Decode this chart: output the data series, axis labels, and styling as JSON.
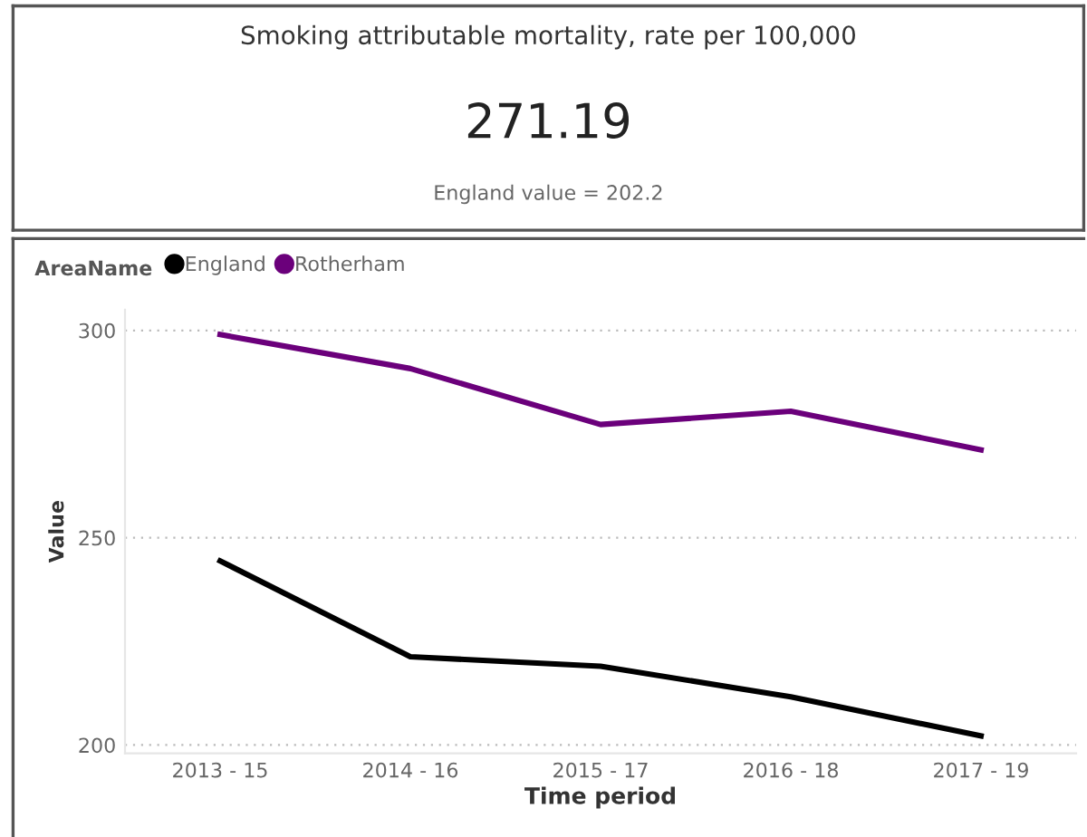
{
  "chart_data": [
    {
      "type": "other",
      "title": "Smoking attributable mortality, rate per 100,000",
      "annotations": [
        "271.19",
        "England value = 202.2"
      ]
    },
    {
      "type": "line",
      "legend_title": "AreaName",
      "legend": "top left",
      "grid": "y",
      "xlabel": "Time period",
      "ylabel": "Value",
      "categories": [
        "2013 - 15",
        "2014 - 16",
        "2015 - 17",
        "2016 - 18",
        "2017 - 19"
      ],
      "ylim": [
        198,
        305
      ],
      "yticks": [
        200,
        250,
        300
      ],
      "series": [
        {
          "name": "England",
          "color": "#000000",
          "values": [
            244.4,
            221.3,
            219.0,
            211.6,
            202.2
          ]
        },
        {
          "name": "Rotherham",
          "color": "#6b007b",
          "values": [
            299.0,
            290.8,
            277.3,
            280.5,
            271.2
          ]
        }
      ]
    }
  ]
}
